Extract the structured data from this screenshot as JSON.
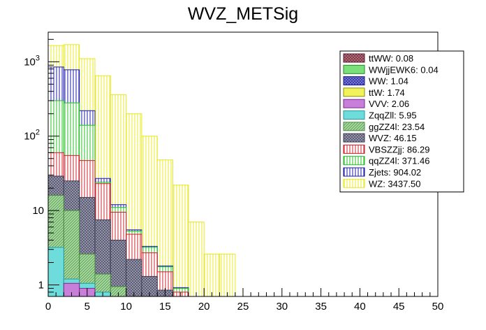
{
  "chart_data": {
    "type": "stacked-histogram",
    "title": "WVZ_METSig",
    "xlabel": "",
    "ylabel": "",
    "xlim": [
      0,
      50
    ],
    "ylim": [
      0.7,
      2500
    ],
    "yscale": "log",
    "bin_width": 2,
    "x_ticks": [
      0,
      5,
      10,
      15,
      20,
      25,
      30,
      35,
      40,
      45,
      50
    ],
    "y_ticks": [
      {
        "value": 1,
        "label": "1"
      },
      {
        "value": 10,
        "label": "10"
      },
      {
        "value": 100,
        "label": "10",
        "exponent": "2"
      },
      {
        "value": 1000,
        "label": "10",
        "exponent": "3"
      }
    ],
    "stack_order": [
      "ZqqZll",
      "ggZZ4l",
      "WVZ",
      "VBSZZjj",
      "qqZZ4l",
      "Zjets",
      "WZ"
    ],
    "bins_lower_edges": [
      0,
      2,
      4,
      6,
      8,
      10,
      12,
      14,
      16,
      18,
      20,
      22
    ],
    "stacked_top_values": [
      {
        "ZqqZll": 3.2,
        "ggZZ4l": 16,
        "WVZ": 29,
        "VBSZZjj": 60,
        "qqZZ4l": 300,
        "Zjets": 850,
        "WZ": 1650
      },
      {
        "ZqqZll": 1.2,
        "ggZZ4l": 10,
        "WVZ": 25,
        "VBSZZjj": 55,
        "qqZZ4l": 280,
        "Zjets": 780,
        "WZ": 1700
      },
      {
        "ZqqZll": 1.05,
        "ggZZ4l": 2.6,
        "WVZ": 15,
        "VBSZZjj": 47,
        "qqZZ4l": 140,
        "Zjets": 220,
        "WZ": 1100
      },
      {
        "ZqqZll": 0.8,
        "ggZZ4l": 1.4,
        "WVZ": 7.5,
        "VBSZZjj": 23,
        "qqZZ4l": 24,
        "Zjets": 27,
        "WZ": 650
      },
      {
        "ZqqZll": 0.7,
        "ggZZ4l": 0.95,
        "WVZ": 4,
        "VBSZZjj": 9.5,
        "qqZZ4l": 11,
        "Zjets": 12,
        "WZ": 360
      },
      {
        "ZqqZll": 0.7,
        "ggZZ4l": 0.7,
        "WVZ": 2.2,
        "VBSZZjj": 4.8,
        "qqZZ4l": 5.3,
        "Zjets": 5.5,
        "WZ": 200
      },
      {
        "ZqqZll": 0.7,
        "ggZZ4l": 0.7,
        "WVZ": 1.3,
        "VBSZZjj": 2.7,
        "qqZZ4l": 3.2,
        "Zjets": 3.3,
        "WZ": 100
      },
      {
        "ZqqZll": 0.7,
        "ggZZ4l": 0.7,
        "WVZ": 0.85,
        "VBSZZjj": 1.5,
        "qqZZ4l": 1.75,
        "Zjets": 1.8,
        "WZ": 48
      },
      {
        "ZqqZll": 0.7,
        "ggZZ4l": 0.7,
        "WVZ": 0.7,
        "VBSZZjj": 0.8,
        "qqZZ4l": 0.9,
        "Zjets": 0.92,
        "WZ": 22
      },
      {
        "ZqqZll": 0.7,
        "ggZZ4l": 0.7,
        "WVZ": 0.7,
        "VBSZZjj": 0.7,
        "qqZZ4l": 0.7,
        "Zjets": 0.7,
        "WZ": 7
      },
      {
        "ZqqZll": 0.7,
        "ggZZ4l": 0.7,
        "WVZ": 0.7,
        "VBSZZjj": 0.7,
        "qqZZ4l": 0.7,
        "Zjets": 0.7,
        "WZ": 2.6
      },
      {
        "ZqqZll": 0.7,
        "ggZZ4l": 0.7,
        "WVZ": 0.7,
        "VBSZZjj": 0.7,
        "qqZZ4l": 0.7,
        "Zjets": 0.7,
        "WZ": 2.6
      }
    ],
    "legend": [
      {
        "label": "ttWW: 0.08",
        "fill": "#b96f7d",
        "line": "#5a1f2d",
        "pattern": "cross"
      },
      {
        "label": "WWjjEWK6: 0.04",
        "fill": "#7be07b",
        "line": "#1c8c1c",
        "pattern": "solid"
      },
      {
        "label": "WW: 1.04",
        "fill": "#7d7ddb",
        "line": "#1a1a8c",
        "pattern": "cross"
      },
      {
        "label": "ttW: 1.74",
        "fill": "#f2f25a",
        "line": "#8c8c10",
        "pattern": "solid"
      },
      {
        "label": "VVV: 2.06",
        "fill": "#c77fd9",
        "line": "#7a2a8c",
        "pattern": "solid"
      },
      {
        "label": "ZqqZll: 5.95",
        "fill": "#6fdcdc",
        "line": "#2a9a9a",
        "pattern": "solid"
      },
      {
        "label": "ggZZ4l: 23.54",
        "fill": "#a6d9a0",
        "line": "#4a8a40",
        "pattern": "diag"
      },
      {
        "label": "WVZ: 46.15",
        "fill": "#9a9ab0",
        "line": "#3a3a50",
        "pattern": "cross"
      },
      {
        "label": "VBSZZjj: 86.29",
        "fill": "#ffffff",
        "line": "#d0202a",
        "pattern": "vert"
      },
      {
        "label": "qqZZ4l: 371.46",
        "fill": "#ffffff",
        "line": "#20c020",
        "pattern": "vert"
      },
      {
        "label": "Zjets: 904.02",
        "fill": "#ffffff",
        "line": "#1a1ab0",
        "pattern": "vert"
      },
      {
        "label": "WZ: 3437.50",
        "fill": "#ffffff",
        "line": "#e8e820",
        "pattern": "vert"
      }
    ],
    "extra_small_patches": [
      {
        "process": "VVV",
        "bins": [
          {
            "lo": 2,
            "hi": 4,
            "top": 1.05
          },
          {
            "lo": 4,
            "hi": 6,
            "top": 0.9
          }
        ]
      }
    ]
  },
  "colors": {
    "ZqqZll": "#6fdcdc",
    "ggZZ4l": "#a6d9a0",
    "WVZ": "#9a9ab0",
    "VBSZZjj": "#d0202a",
    "qqZZ4l": "#20c020",
    "Zjets": "#1a1ab0",
    "WZ": "#e8e820",
    "VVV": "#c77fd9"
  }
}
